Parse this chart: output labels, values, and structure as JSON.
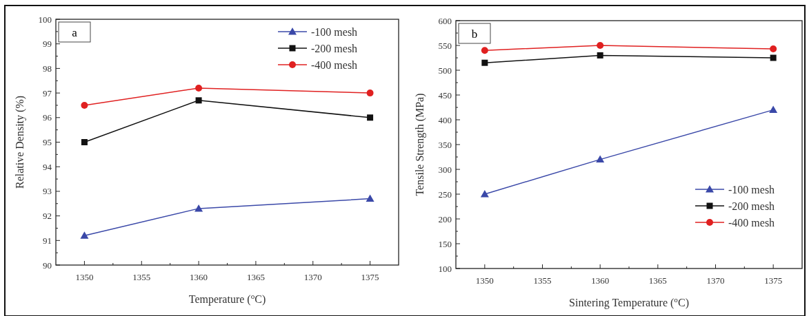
{
  "chart_data": [
    {
      "type": "line",
      "xlabel": "Temperature ($^{o}$C)",
      "ylabel": "Relative Density (%)",
      "annotations": [
        "a"
      ],
      "x": [
        1350,
        1360,
        1375
      ],
      "xlim": [
        1347.5,
        1377.5
      ],
      "xticks": [
        1350,
        1355,
        1360,
        1365,
        1370,
        1375
      ],
      "ylim": [
        90,
        100
      ],
      "yticks": [
        90,
        91,
        92,
        93,
        94,
        95,
        96,
        97,
        98,
        99,
        100
      ],
      "legend": "top right",
      "series": [
        {
          "name": "-100 mesh",
          "color": "#3a48a8",
          "marker": "triangle",
          "values": [
            91.2,
            92.3,
            92.7
          ]
        },
        {
          "name": "-200 mesh",
          "color": "#111111",
          "marker": "square",
          "values": [
            95.0,
            96.7,
            96.0
          ]
        },
        {
          "name": "-400 mesh",
          "color": "#e02020",
          "marker": "circle",
          "values": [
            96.5,
            97.2,
            97.0
          ]
        }
      ]
    },
    {
      "type": "line",
      "xlabel": "Sintering Temperature ($^{o}$C)",
      "ylabel": "Tensile Strength (MPa)",
      "annotations": [
        "b"
      ],
      "x": [
        1350,
        1360,
        1375
      ],
      "xlim": [
        1347.5,
        1377.5
      ],
      "xticks": [
        1350,
        1355,
        1360,
        1365,
        1370,
        1375
      ],
      "ylim": [
        100,
        600
      ],
      "yticks": [
        100,
        150,
        200,
        250,
        300,
        350,
        400,
        450,
        500,
        550,
        600
      ],
      "legend": "right",
      "series": [
        {
          "name": "-100 mesh",
          "color": "#3a48a8",
          "marker": "triangle",
          "values": [
            250,
            320,
            420
          ]
        },
        {
          "name": "-200 mesh",
          "color": "#111111",
          "marker": "square",
          "values": [
            515,
            530,
            525
          ]
        },
        {
          "name": "-400 mesh",
          "color": "#e02020",
          "marker": "circle",
          "values": [
            540,
            550,
            543
          ]
        }
      ]
    }
  ]
}
